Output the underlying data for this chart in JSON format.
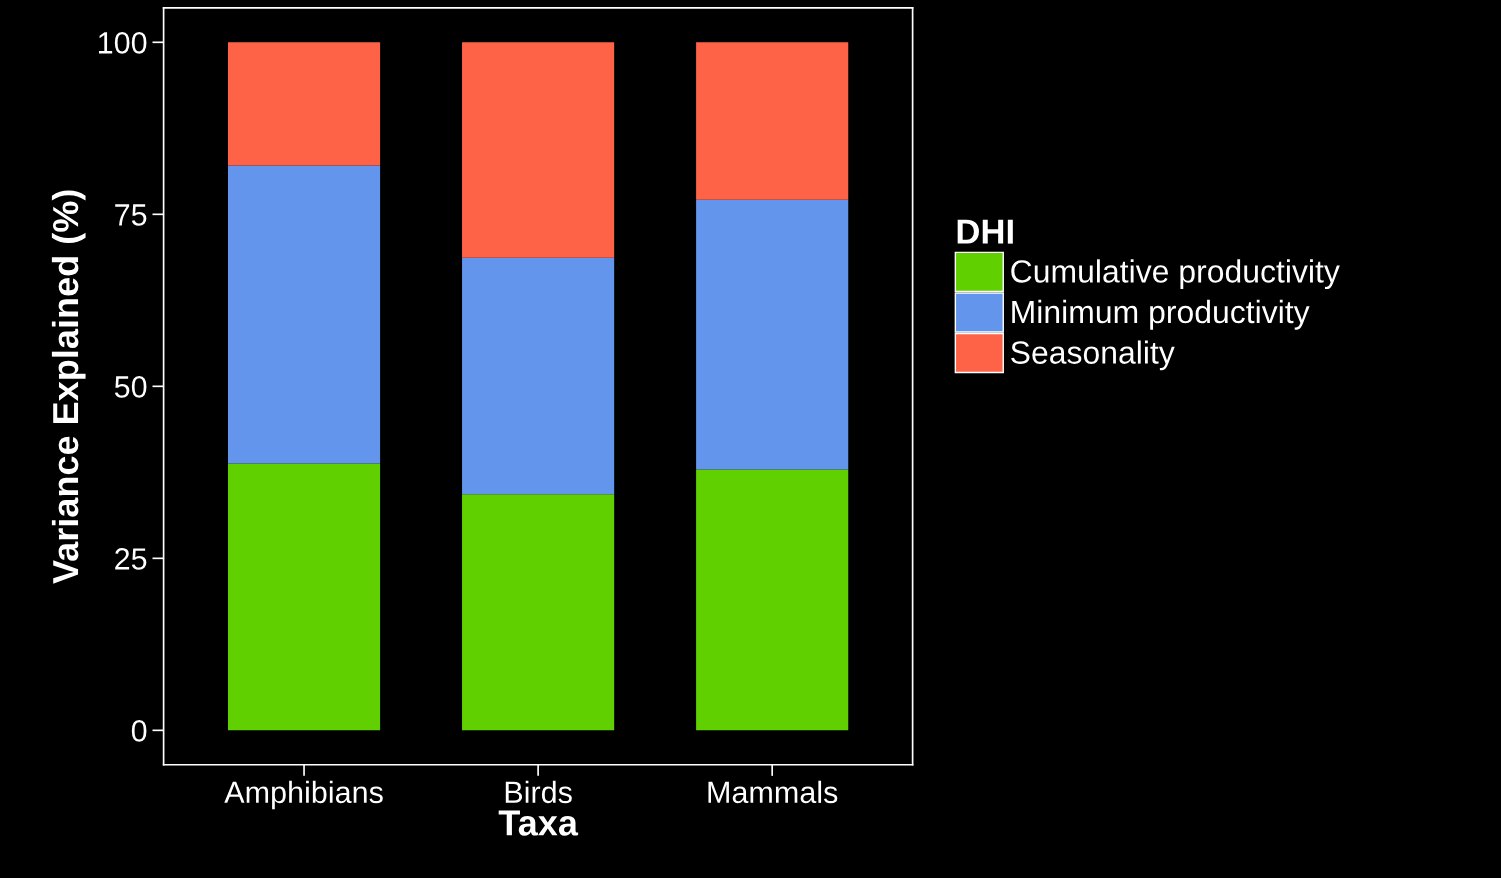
{
  "chart_data": {
    "type": "bar",
    "stacked": true,
    "xlabel": "Taxa",
    "ylabel": "Variance Explained (%)",
    "legend_title": "DHI",
    "legend": "right",
    "categories": [
      "Amphibians",
      "Birds",
      "Mammals"
    ],
    "series": [
      {
        "name": "Cumulative productivity",
        "color": "#61d000",
        "values": [
          38.8,
          34.3,
          37.9
        ]
      },
      {
        "name": "Minimum productivity",
        "color": "#6495ed",
        "values": [
          43.3,
          34.4,
          39.2
        ]
      },
      {
        "name": "Seasonality",
        "color": "#ff6347",
        "values": [
          17.9,
          31.3,
          22.9
        ]
      }
    ],
    "ylim": [
      -5,
      105
    ],
    "yticks": [
      0,
      25,
      50,
      75,
      100
    ],
    "grid": false
  }
}
